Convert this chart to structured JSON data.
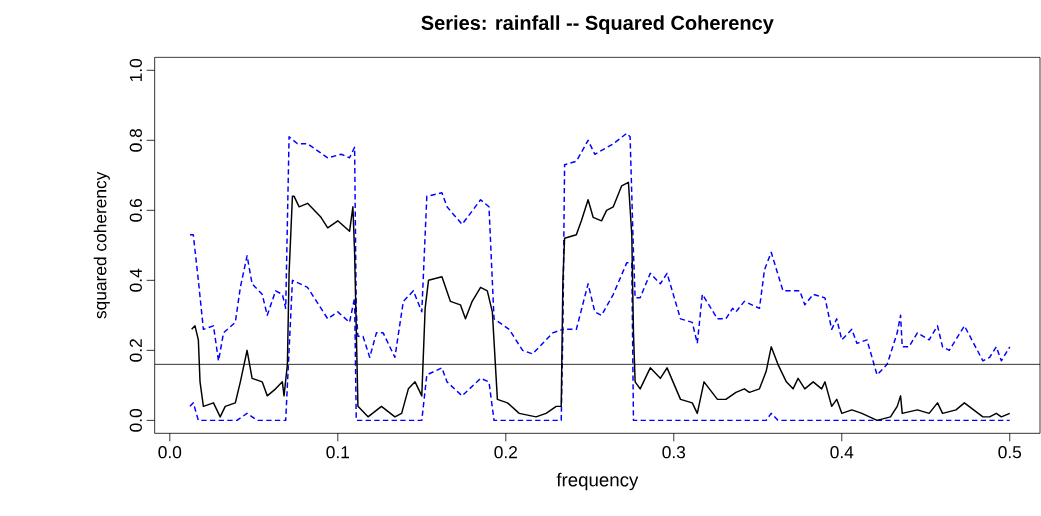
{
  "chart_data": {
    "type": "line",
    "title": "Series: rainfall --  Squared Coherency",
    "xlabel": "frequency",
    "ylabel": "squared coherency",
    "xlim": [
      -0.009,
      0.518
    ],
    "ylim": [
      -0.037,
      1.037
    ],
    "xticks": [
      {
        "value": 0,
        "label": "0.0"
      },
      {
        "value": 0.1,
        "label": "0.1"
      },
      {
        "value": 0.2,
        "label": "0.2"
      },
      {
        "value": 0.3,
        "label": "0.3"
      },
      {
        "value": 0.4,
        "label": "0.4"
      },
      {
        "value": 0.5,
        "label": "0.5"
      }
    ],
    "yticks": [
      {
        "value": 0,
        "label": "0.0"
      },
      {
        "value": 0.2,
        "label": "0.2"
      },
      {
        "value": 0.4,
        "label": "0.4"
      },
      {
        "value": 0.6,
        "label": "0.6"
      },
      {
        "value": 0.8,
        "label": "0.8"
      },
      {
        "value": 1.0,
        "label": "1.0"
      }
    ],
    "ref_lines": [
      {
        "axis": "y",
        "value": 0.16,
        "color": "#000000"
      }
    ],
    "series": [
      {
        "color": "#0000ff",
        "line_style": "dashed",
        "x": [
          0.012,
          0.014,
          0.017,
          0.02,
          0.026,
          0.029,
          0.032,
          0.039,
          0.042,
          0.046,
          0.049,
          0.055,
          0.058,
          0.063,
          0.067,
          0.069,
          0.071,
          0.076,
          0.082,
          0.094,
          0.102,
          0.107,
          0.11,
          0.111,
          0.112,
          0.115,
          0.119,
          0.123,
          0.127,
          0.134,
          0.139,
          0.145,
          0.15,
          0.153,
          0.162,
          0.165,
          0.174,
          0.185,
          0.19,
          0.193,
          0.202,
          0.21,
          0.216,
          0.22,
          0.228,
          0.234,
          0.235,
          0.242,
          0.249,
          0.253,
          0.264,
          0.272,
          0.274,
          0.276,
          0.277,
          0.28,
          0.286,
          0.292,
          0.296,
          0.304,
          0.311,
          0.314,
          0.317,
          0.326,
          0.331,
          0.335,
          0.337,
          0.342,
          0.351,
          0.354,
          0.358,
          0.365,
          0.375,
          0.378,
          0.383,
          0.39,
          0.394,
          0.397,
          0.4,
          0.406,
          0.409,
          0.415,
          0.421,
          0.427,
          0.433,
          0.435,
          0.436,
          0.44,
          0.445,
          0.452,
          0.457,
          0.46,
          0.464,
          0.473,
          0.484,
          0.488,
          0.492,
          0.495,
          0.5
        ],
        "values": [
          0.53,
          0.53,
          0.4,
          0.26,
          0.27,
          0.17,
          0.25,
          0.28,
          0.38,
          0.47,
          0.39,
          0.36,
          0.3,
          0.37,
          0.36,
          0.32,
          0.81,
          0.79,
          0.79,
          0.75,
          0.76,
          0.75,
          0.78,
          0.31,
          0.24,
          0.24,
          0.18,
          0.25,
          0.25,
          0.18,
          0.34,
          0.37,
          0.31,
          0.64,
          0.65,
          0.61,
          0.56,
          0.63,
          0.61,
          0.29,
          0.26,
          0.2,
          0.19,
          0.21,
          0.25,
          0.26,
          0.73,
          0.74,
          0.8,
          0.76,
          0.79,
          0.82,
          0.81,
          0.48,
          0.35,
          0.35,
          0.42,
          0.39,
          0.42,
          0.29,
          0.28,
          0.22,
          0.36,
          0.29,
          0.29,
          0.32,
          0.31,
          0.34,
          0.32,
          0.43,
          0.48,
          0.37,
          0.37,
          0.33,
          0.36,
          0.35,
          0.26,
          0.29,
          0.23,
          0.26,
          0.22,
          0.23,
          0.13,
          0.16,
          0.25,
          0.3,
          0.21,
          0.21,
          0.25,
          0.23,
          0.27,
          0.21,
          0.2,
          0.27,
          0.17,
          0.18,
          0.21,
          0.17,
          0.21
        ]
      },
      {
        "color": "#0000ff",
        "line_style": "dashed",
        "x": [
          0.012,
          0.014,
          0.017,
          0.04,
          0.046,
          0.052,
          0.069,
          0.073,
          0.082,
          0.094,
          0.1,
          0.107,
          0.11,
          0.111,
          0.15,
          0.153,
          0.162,
          0.165,
          0.174,
          0.185,
          0.19,
          0.193,
          0.233,
          0.234,
          0.242,
          0.249,
          0.253,
          0.257,
          0.264,
          0.272,
          0.275,
          0.276,
          0.3,
          0.355,
          0.358,
          0.362,
          0.5
        ],
        "values": [
          0.04,
          0.05,
          0.0,
          0.0,
          0.02,
          0.0,
          0.0,
          0.4,
          0.38,
          0.29,
          0.31,
          0.28,
          0.35,
          0.0,
          0.0,
          0.13,
          0.15,
          0.11,
          0.07,
          0.12,
          0.11,
          0.0,
          0.0,
          0.26,
          0.26,
          0.39,
          0.31,
          0.3,
          0.36,
          0.45,
          0.45,
          0.0,
          0.0,
          0.0,
          0.02,
          0.0,
          0.0
        ]
      },
      {
        "color": "#000000",
        "line_style": "solid",
        "x": [
          0.013,
          0.015,
          0.017,
          0.018,
          0.02,
          0.026,
          0.03,
          0.033,
          0.039,
          0.042,
          0.046,
          0.049,
          0.055,
          0.058,
          0.063,
          0.067,
          0.068,
          0.07,
          0.071,
          0.073,
          0.074,
          0.077,
          0.082,
          0.088,
          0.09,
          0.094,
          0.1,
          0.107,
          0.109,
          0.11,
          0.112,
          0.118,
          0.126,
          0.134,
          0.138,
          0.142,
          0.146,
          0.15,
          0.152,
          0.154,
          0.162,
          0.167,
          0.173,
          0.176,
          0.18,
          0.185,
          0.189,
          0.192,
          0.195,
          0.201,
          0.208,
          0.218,
          0.224,
          0.23,
          0.233,
          0.234,
          0.235,
          0.242,
          0.245,
          0.249,
          0.252,
          0.257,
          0.26,
          0.264,
          0.269,
          0.273,
          0.275,
          0.276,
          0.277,
          0.28,
          0.286,
          0.292,
          0.296,
          0.304,
          0.311,
          0.314,
          0.318,
          0.326,
          0.331,
          0.337,
          0.342,
          0.345,
          0.351,
          0.355,
          0.358,
          0.362,
          0.367,
          0.371,
          0.374,
          0.378,
          0.383,
          0.388,
          0.39,
          0.394,
          0.397,
          0.4,
          0.406,
          0.412,
          0.421,
          0.429,
          0.433,
          0.435,
          0.436,
          0.445,
          0.452,
          0.457,
          0.46,
          0.468,
          0.473,
          0.484,
          0.488,
          0.492,
          0.495,
          0.5
        ],
        "values": [
          0.26,
          0.27,
          0.23,
          0.11,
          0.04,
          0.05,
          0.01,
          0.04,
          0.05,
          0.11,
          0.2,
          0.12,
          0.11,
          0.07,
          0.09,
          0.11,
          0.07,
          0.16,
          0.42,
          0.64,
          0.64,
          0.61,
          0.62,
          0.59,
          0.58,
          0.55,
          0.57,
          0.54,
          0.61,
          0.48,
          0.04,
          0.01,
          0.04,
          0.01,
          0.02,
          0.09,
          0.11,
          0.07,
          0.32,
          0.4,
          0.41,
          0.34,
          0.33,
          0.29,
          0.34,
          0.38,
          0.37,
          0.31,
          0.06,
          0.05,
          0.02,
          0.01,
          0.02,
          0.04,
          0.04,
          0.4,
          0.52,
          0.53,
          0.57,
          0.63,
          0.58,
          0.57,
          0.6,
          0.61,
          0.67,
          0.68,
          0.53,
          0.25,
          0.11,
          0.09,
          0.15,
          0.12,
          0.15,
          0.06,
          0.05,
          0.02,
          0.11,
          0.06,
          0.06,
          0.08,
          0.09,
          0.08,
          0.09,
          0.14,
          0.21,
          0.16,
          0.11,
          0.09,
          0.12,
          0.09,
          0.11,
          0.09,
          0.11,
          0.04,
          0.06,
          0.02,
          0.03,
          0.02,
          0.0,
          0.01,
          0.04,
          0.07,
          0.02,
          0.03,
          0.02,
          0.05,
          0.02,
          0.03,
          0.05,
          0.01,
          0.01,
          0.02,
          0.01,
          0.02
        ]
      }
    ]
  }
}
